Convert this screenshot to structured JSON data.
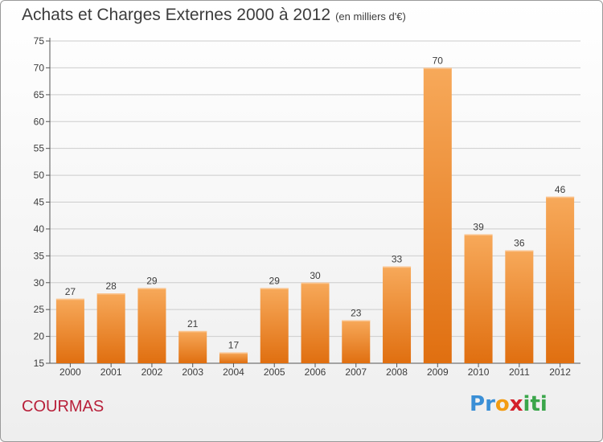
{
  "title": "Achats et Charges Externes 2000 à 2012",
  "unit_note": "(en milliers d'€)",
  "commune": "COURMAS",
  "logo": {
    "text": "Proxiti",
    "letters": [
      {
        "ch": "P",
        "color": "#3a8fd6"
      },
      {
        "ch": "r",
        "color": "#3a8fd6"
      },
      {
        "ch": "o",
        "color": "#f39c12"
      },
      {
        "ch": "x",
        "color": "#d4202a"
      },
      {
        "ch": "i",
        "color": "#3aa64a"
      },
      {
        "ch": "t",
        "color": "#3aa64a"
      },
      {
        "ch": "i",
        "color": "#3aa64a"
      }
    ]
  },
  "colors": {
    "bar_top": "#f7a95a",
    "bar_bottom": "#e06f10",
    "text": "#3c3c3c",
    "grid": "#cccccc"
  },
  "chart_data": {
    "type": "bar",
    "title": "Achats et Charges Externes 2000 à 2012",
    "xlabel": "",
    "ylabel": "",
    "categories": [
      "2000",
      "2001",
      "2002",
      "2003",
      "2004",
      "2005",
      "2006",
      "2007",
      "2008",
      "2009",
      "2010",
      "2011",
      "2012"
    ],
    "values": [
      27,
      28,
      29,
      21,
      17,
      29,
      30,
      23,
      33,
      70,
      39,
      36,
      46
    ],
    "ylim": [
      15,
      75
    ],
    "yticks": [
      15,
      20,
      25,
      30,
      35,
      40,
      45,
      50,
      55,
      60,
      65,
      70,
      75
    ],
    "grid": "horizontal"
  }
}
